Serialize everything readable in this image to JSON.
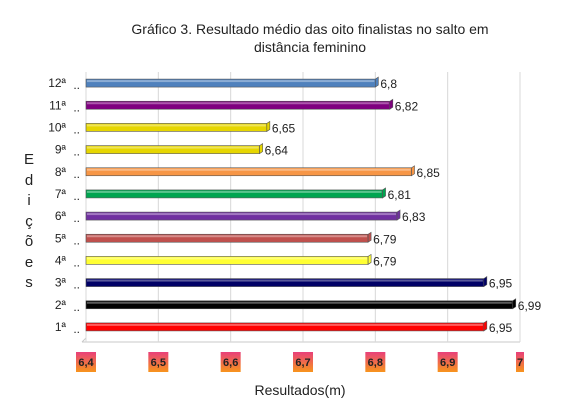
{
  "chart_data": {
    "type": "bar",
    "orientation": "horizontal",
    "title_line1": "Gráfico 3. Resultado médio das oito finalistas no salto em",
    "title_line2": "distância feminino",
    "xlabel": "Resultados(m)",
    "ylabel": "Edições",
    "xlim": [
      6.4,
      7
    ],
    "xticks": [
      "6,4",
      "6,5",
      "6,6",
      "6,7",
      "6,8",
      "6,9",
      "7"
    ],
    "categories": [
      "1ª",
      "2ª",
      "3ª",
      "4ª",
      "5ª",
      "6ª",
      "7ª",
      "8ª",
      "9ª",
      "10ª",
      "11ª",
      "12ª"
    ],
    "category_labels": [
      "1ª",
      "2ª",
      "3ª",
      "4ª",
      "5ª",
      "6ª",
      "7ª",
      "8ª",
      "9ª",
      "10ª",
      "11ª",
      "12ª"
    ],
    "values": [
      6.95,
      6.99,
      6.95,
      6.79,
      6.79,
      6.83,
      6.81,
      6.85,
      6.64,
      6.65,
      6.82,
      6.8
    ],
    "value_labels": [
      "6,95",
      "6,99",
      "6,95",
      "6,79",
      "6,79",
      "6,83",
      "6,81",
      "6,85",
      "6,64",
      "6,65",
      "6,82",
      "6,8"
    ],
    "bar_colors": [
      "#ff0000",
      "#000000",
      "#000066",
      "#ffff33",
      "#c0504d",
      "#7030a0",
      "#00a550",
      "#f79646",
      "#e6d600",
      "#e6d600",
      "#7f007f",
      "#4f81bd"
    ],
    "tick_badge_colors": [
      "#e8407a",
      "#f7941d"
    ],
    "grid": true
  }
}
